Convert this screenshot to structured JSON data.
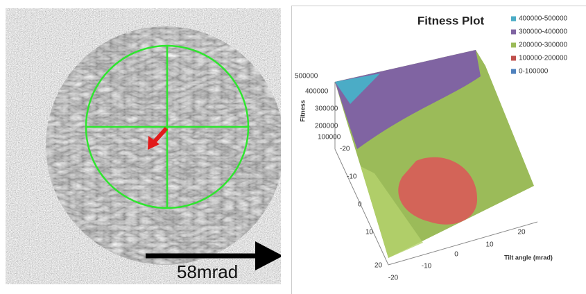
{
  "scale_label": "58mrad",
  "plot": {
    "title": "Fitness Plot",
    "legend": [
      "400000-500000",
      "300000-400000",
      "200000-300000",
      "100000-200000",
      "0-100000"
    ],
    "y_axis_title": "Fitness",
    "y_ticks": [
      "500000",
      "400000",
      "300000",
      "200000",
      "100000"
    ],
    "depth_ticks": [
      "-20",
      "-10",
      "0",
      "10",
      "20"
    ],
    "x_ticks": [
      "-20",
      "-10",
      "0",
      "10",
      "20"
    ],
    "x_axis_title": "Tilt angle (mrad)"
  }
}
